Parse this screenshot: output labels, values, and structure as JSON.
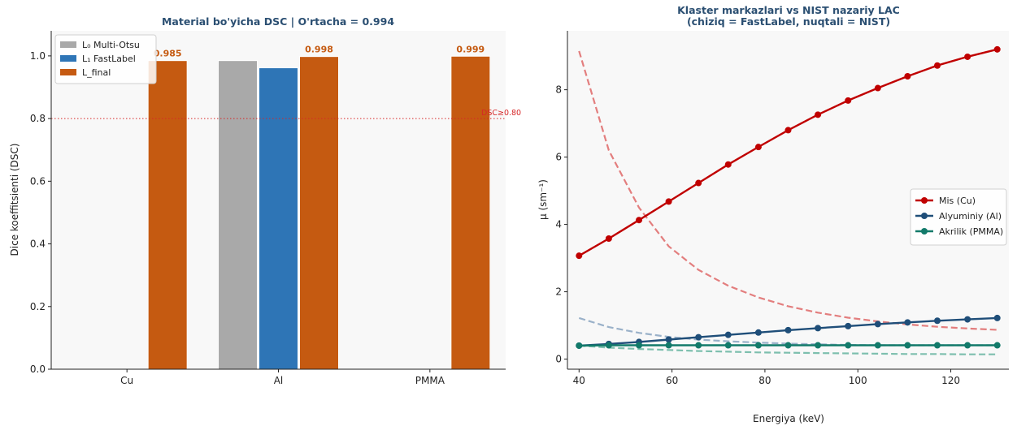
{
  "chart_data": [
    {
      "type": "bar",
      "title": "Material bo'yicha DSC | O'rtacha = 0.994",
      "xlabel": "",
      "ylabel": "Dice koeffitsienti (DSC)",
      "ylim": [
        0,
        1.08
      ],
      "yticks": [
        0.0,
        0.2,
        0.4,
        0.6,
        0.8,
        1.0
      ],
      "categories": [
        "Cu",
        "Al",
        "PMMA"
      ],
      "series": [
        {
          "name": "L₀ Multi-Otsu",
          "color": "#a9a9a9",
          "values": [
            null,
            0.985,
            null
          ]
        },
        {
          "name": "L₁ FastLabel",
          "color": "#2e75b6",
          "values": [
            null,
            0.962,
            null
          ]
        },
        {
          "name": "L_final",
          "color": "#c55a11",
          "values": [
            0.985,
            0.998,
            0.999
          ]
        }
      ],
      "data_labels": [
        {
          "category": "Cu",
          "series": "L_final",
          "text": "0.985"
        },
        {
          "category": "Al",
          "series": "L_final",
          "text": "0.998"
        },
        {
          "category": "PMMA",
          "series": "L_final",
          "text": "0.999"
        }
      ],
      "reference_line": {
        "y": 0.8,
        "label": "DSC≥0.80",
        "color": "#d62728"
      },
      "legend_position": "top-left",
      "grid": false
    },
    {
      "type": "line",
      "title": "Klaster markazlari vs NIST nazariy LAC",
      "subtitle": "(chiziq = FastLabel, nuqtali = NIST)",
      "xlabel": "Energiya (keV)",
      "ylabel": "μ (sm⁻¹)",
      "xlim": [
        37.5,
        132.5
      ],
      "ylim": [
        -0.3,
        9.75
      ],
      "xticks": [
        40,
        60,
        80,
        100,
        120
      ],
      "yticks": [
        0,
        2,
        4,
        6,
        8
      ],
      "x": [
        40,
        46.4,
        52.9,
        59.3,
        65.7,
        72.1,
        78.6,
        85,
        91.4,
        97.9,
        104.3,
        110.7,
        117.1,
        123.6,
        130
      ],
      "series": [
        {
          "name": "Mis (Cu)",
          "style": "solid-markers",
          "color": "#c00000",
          "values": [
            3.07,
            3.58,
            4.13,
            4.68,
            5.23,
            5.78,
            6.3,
            6.8,
            7.26,
            7.68,
            8.05,
            8.4,
            8.72,
            8.98,
            9.2
          ]
        },
        {
          "name": "Alyuminiy (Al)",
          "style": "solid-markers",
          "color": "#1f4e79",
          "values": [
            0.4,
            0.45,
            0.51,
            0.58,
            0.65,
            0.72,
            0.79,
            0.86,
            0.92,
            0.98,
            1.04,
            1.09,
            1.14,
            1.18,
            1.22
          ]
        },
        {
          "name": "Akrilik (PMMA)",
          "style": "solid-markers",
          "color": "#127a6a",
          "values": [
            0.4,
            0.41,
            0.41,
            0.41,
            0.41,
            0.41,
            0.41,
            0.41,
            0.41,
            0.41,
            0.41,
            0.41,
            0.41,
            0.41,
            0.41
          ]
        },
        {
          "style": "dashed",
          "color": "#e07070",
          "values": [
            9.15,
            6.2,
            4.5,
            3.35,
            2.65,
            2.18,
            1.83,
            1.57,
            1.38,
            1.23,
            1.12,
            1.03,
            0.96,
            0.91,
            0.87
          ]
        },
        {
          "style": "dashed",
          "color": "#8fa8c3",
          "values": [
            1.22,
            0.95,
            0.78,
            0.66,
            0.58,
            0.53,
            0.49,
            0.46,
            0.44,
            0.42,
            0.41,
            0.41,
            0.41,
            0.41,
            0.41
          ]
        },
        {
          "style": "dashed",
          "color": "#6fb8a5",
          "values": [
            0.4,
            0.34,
            0.3,
            0.27,
            0.24,
            0.22,
            0.2,
            0.19,
            0.18,
            0.17,
            0.16,
            0.15,
            0.15,
            0.14,
            0.14
          ]
        }
      ],
      "legend_position": "right",
      "grid": false
    }
  ]
}
